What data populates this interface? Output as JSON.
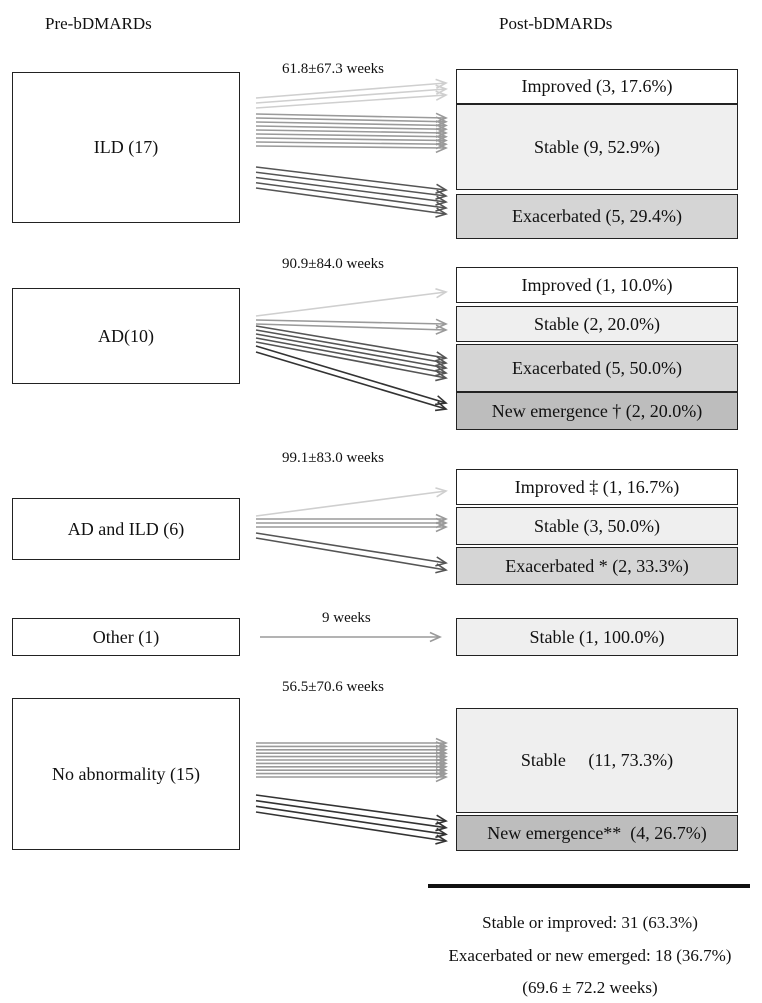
{
  "headers": {
    "pre": "Pre-bDMARDs",
    "post": "Post-bDMARDs"
  },
  "colors": {
    "improved": "#ffffff",
    "stable": "#efefef",
    "exacerbated": "#d5d5d5",
    "new": "#bdbdbd",
    "arrow_improved": "#cfcfcf",
    "arrow_stable": "#9a9a9a",
    "arrow_exacerbated": "#555555",
    "arrow_new": "#333333"
  },
  "groups": [
    {
      "label": "ILD (17)",
      "weeks": "61.8±67.3 weeks",
      "outcomes": [
        {
          "label": "Improved (3, 17.6%)",
          "kind": "improved",
          "n": 3
        },
        {
          "label": "Stable (9, 52.9%)",
          "kind": "stable",
          "n": 9
        },
        {
          "label": "Exacerbated (5, 29.4%)",
          "kind": "exacerbated",
          "n": 5
        }
      ]
    },
    {
      "label": "AD(10)",
      "weeks": "90.9±84.0 weeks",
      "outcomes": [
        {
          "label": "Improved (1, 10.0%)",
          "kind": "improved",
          "n": 1
        },
        {
          "label": "Stable (2, 20.0%)",
          "kind": "stable",
          "n": 2
        },
        {
          "label": "Exacerbated (5, 50.0%)",
          "kind": "exacerbated",
          "n": 5
        },
        {
          "label": "New emergence † (2, 20.0%)",
          "kind": "new",
          "n": 2
        }
      ]
    },
    {
      "label": "AD and ILD (6)",
      "weeks": "99.1±83.0 weeks",
      "outcomes": [
        {
          "label": "Improved ‡ (1, 16.7%)",
          "kind": "improved",
          "n": 1
        },
        {
          "label": "Stable (3, 50.0%)",
          "kind": "stable",
          "n": 3
        },
        {
          "label": "Exacerbated * (2, 33.3%)",
          "kind": "exacerbated",
          "n": 2
        }
      ]
    },
    {
      "label": "Other (1)",
      "weeks": "9 weeks",
      "outcomes": [
        {
          "label": "Stable (1, 100.0%)",
          "kind": "stable",
          "n": 1
        }
      ]
    },
    {
      "label": "No abnormality (15)",
      "weeks": "56.5±70.6 weeks",
      "outcomes": [
        {
          "label": "Stable     (11, 73.3%)",
          "kind": "stable",
          "n": 11
        },
        {
          "label": "New emergence**  (4, 26.7%)",
          "kind": "new",
          "n": 4
        }
      ]
    }
  ],
  "summary": {
    "line1": "Stable or improved: 31 (63.3%)",
    "line2": "Exacerbated or new emerged: 18 (36.7%)",
    "line3": "(69.6 ± 72.2 weeks)"
  }
}
